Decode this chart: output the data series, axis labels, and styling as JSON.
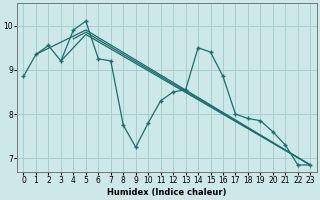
{
  "xlabel": "Humidex (Indice chaleur)",
  "ylabel": "",
  "xlim": [
    -0.5,
    23.5
  ],
  "ylim": [
    6.7,
    10.5
  ],
  "xticks": [
    0,
    1,
    2,
    3,
    4,
    5,
    6,
    7,
    8,
    9,
    10,
    11,
    12,
    13,
    14,
    15,
    16,
    17,
    18,
    19,
    20,
    21,
    22,
    23
  ],
  "yticks": [
    7,
    8,
    9,
    10
  ],
  "bg_color": "#cde8e8",
  "line_color": "#1a6e6e",
  "grid_color": "#a8cece",
  "series": [
    {
      "x": [
        0,
        1,
        2,
        3,
        4,
        5,
        6,
        7,
        8,
        9,
        10,
        11,
        12,
        13,
        14,
        15,
        16,
        17,
        18,
        19,
        20,
        21,
        22,
        23
      ],
      "y": [
        8.85,
        9.35,
        9.55,
        9.2,
        9.9,
        10.1,
        9.25,
        9.2,
        7.75,
        7.25,
        7.8,
        8.3,
        8.5,
        8.55,
        9.5,
        9.4,
        8.85,
        8.0,
        7.9,
        7.85,
        7.6,
        7.3,
        6.85,
        6.85
      ]
    },
    {
      "x": [
        1,
        5,
        23
      ],
      "y": [
        9.35,
        9.9,
        6.85
      ]
    },
    {
      "x": [
        3,
        5,
        23
      ],
      "y": [
        9.2,
        9.8,
        6.85
      ]
    },
    {
      "x": [
        4,
        5,
        23
      ],
      "y": [
        9.7,
        9.85,
        6.85
      ]
    }
  ]
}
